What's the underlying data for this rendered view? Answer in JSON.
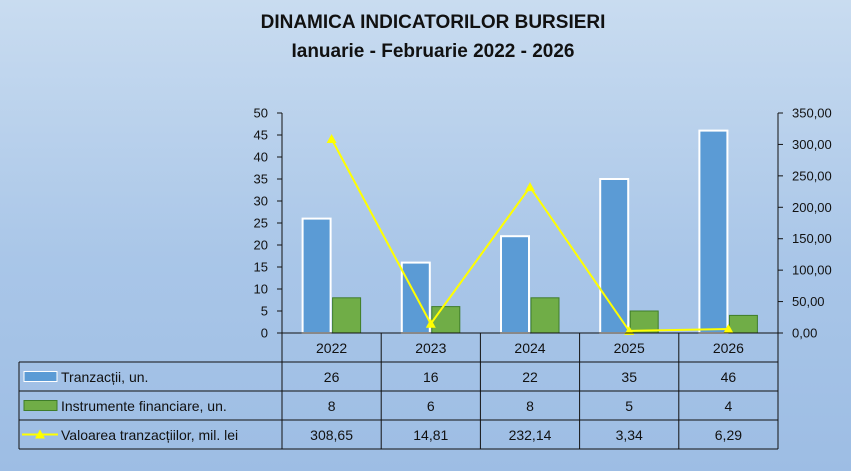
{
  "chart_data": {
    "type": "bar",
    "title": "DINAMICA INDICATORILOR BURSIERI",
    "subtitle": "Ianuarie - Februarie 2022 - 2026",
    "categories": [
      "2022",
      "2023",
      "2024",
      "2025",
      "2026"
    ],
    "left_axis": {
      "min": 0,
      "max": 50,
      "step": 5,
      "tick_labels": [
        "0",
        "5",
        "10",
        "15",
        "20",
        "25",
        "30",
        "35",
        "40",
        "45",
        "50"
      ]
    },
    "right_axis": {
      "min": 0,
      "max": 350,
      "step": 50,
      "tick_labels": [
        "0,00",
        "50,00",
        "100,00",
        "150,00",
        "200,00",
        "250,00",
        "300,00",
        "350,00"
      ]
    },
    "grid": false,
    "legend_placement": "data-table",
    "series": [
      {
        "name": "Tranzacții, un.",
        "kind": "bar",
        "axis": "left",
        "color": "#5b9bd5",
        "values": [
          26,
          16,
          22,
          35,
          46
        ],
        "labels": [
          "26",
          "16",
          "22",
          "35",
          "46"
        ]
      },
      {
        "name": "Instrumente financiare, un.",
        "kind": "bar",
        "axis": "left",
        "color": "#70ad47",
        "values": [
          8,
          6,
          8,
          5,
          4
        ],
        "labels": [
          "8",
          "6",
          "8",
          "5",
          "4"
        ]
      },
      {
        "name": "Valoarea tranzacțiilor, mil. lei",
        "kind": "line",
        "axis": "right",
        "color": "#ffff00",
        "values": [
          308.65,
          14.81,
          232.14,
          3.34,
          6.29
        ],
        "labels": [
          "308,65",
          "14,81",
          "232,14",
          "3,34",
          "6,29"
        ]
      }
    ]
  }
}
